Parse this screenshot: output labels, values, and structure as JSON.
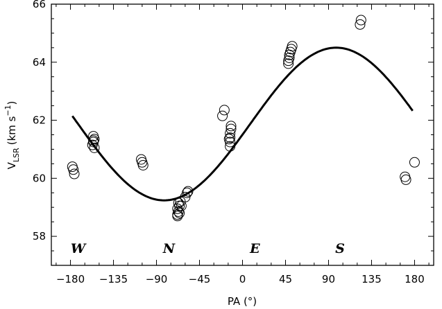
{
  "chart_data": {
    "type": "scatter",
    "xlabel": "PA (°)",
    "ylabel": {
      "main": "V",
      "subscript": "LSR",
      "units": "(km s",
      "exponent": "−1",
      "close": ")"
    },
    "xlim": [
      -200,
      200
    ],
    "ylim": [
      57,
      66
    ],
    "xticks": [
      -180,
      -135,
      -90,
      -45,
      0,
      45,
      90,
      135,
      180
    ],
    "xtick_labels": [
      "−180",
      "−135",
      "−90",
      "−45",
      "0",
      "45",
      "90",
      "135",
      "180"
    ],
    "yticks": [
      58,
      60,
      62,
      64,
      66
    ],
    "ytick_labels": [
      "58",
      "60",
      "62",
      "64",
      "66"
    ],
    "grid": false,
    "legend": "none",
    "series": [
      {
        "kind": "points",
        "marker": "open-circle",
        "points": [
          [
            -178,
            60.4
          ],
          [
            -177,
            60.3
          ],
          [
            -176,
            60.15
          ],
          [
            -156,
            61.45
          ],
          [
            -155,
            61.35
          ],
          [
            -156,
            61.25
          ],
          [
            -157,
            61.15
          ],
          [
            -155,
            61.05
          ],
          [
            -156,
            61.3
          ],
          [
            -106,
            60.65
          ],
          [
            -105,
            60.55
          ],
          [
            -104,
            60.45
          ],
          [
            -68,
            58.75
          ],
          [
            -67,
            58.85
          ],
          [
            -68,
            58.95
          ],
          [
            -66,
            59.05
          ],
          [
            -67,
            59.15
          ],
          [
            -65,
            59.2
          ],
          [
            -64,
            59.05
          ],
          [
            -66,
            58.8
          ],
          [
            -68,
            58.7
          ],
          [
            -60,
            59.35
          ],
          [
            -58,
            59.5
          ],
          [
            -57,
            59.55
          ],
          [
            -21,
            62.15
          ],
          [
            -19,
            62.35
          ],
          [
            -13,
            61.1
          ],
          [
            -13,
            61.25
          ],
          [
            -13,
            61.4
          ],
          [
            -13,
            61.55
          ],
          [
            -12,
            61.7
          ],
          [
            -12,
            61.8
          ],
          [
            -14,
            61.35
          ],
          [
            48,
            63.95
          ],
          [
            48,
            64.05
          ],
          [
            49,
            64.15
          ],
          [
            49,
            64.25
          ],
          [
            50,
            64.35
          ],
          [
            51,
            64.45
          ],
          [
            52,
            64.55
          ],
          [
            123,
            65.3
          ],
          [
            124,
            65.45
          ],
          [
            170,
            60.05
          ],
          [
            171,
            59.95
          ],
          [
            180,
            60.55
          ]
        ]
      },
      {
        "kind": "model-curve",
        "model": "V = 61.87 + 2.63 * sin(PA - 8°)",
        "x_range": [
          -178,
          178
        ]
      }
    ],
    "annotations": [
      {
        "text": "W",
        "x": -172,
        "y": 57.6
      },
      {
        "text": "N",
        "x": -77,
        "y": 57.6
      },
      {
        "text": "E",
        "x": 13,
        "y": 57.6
      },
      {
        "text": "S",
        "x": 102,
        "y": 57.6
      }
    ]
  }
}
